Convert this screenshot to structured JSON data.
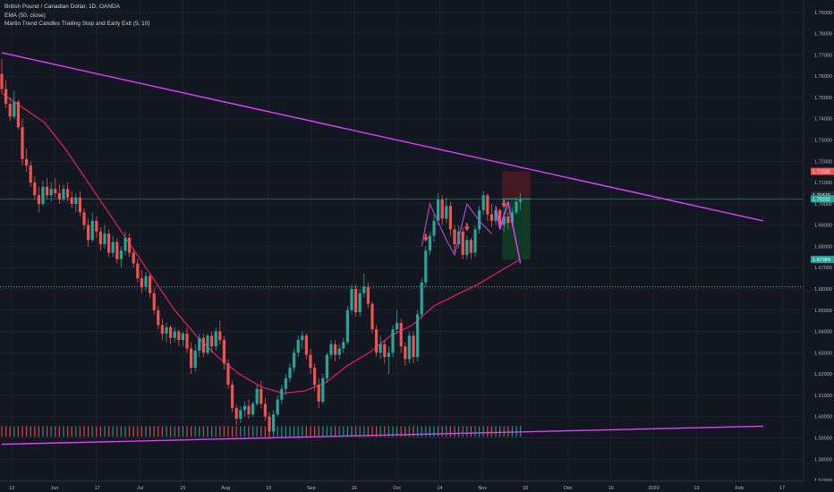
{
  "header": {
    "symbol_line": "British Pound / Canadian Dollar, 1D, OANDA",
    "ema_line": "EMA (50, close)",
    "indicator_line": "Martin Trend Candles Trailing Stop and Early Exit (5, 10)"
  },
  "colors": {
    "background": "#131722",
    "up": "#26a69a",
    "down": "#ef5350",
    "ema": "#e91e63",
    "trendline": "#e040fb",
    "pattern_line": "#ab47bc",
    "level_line": "#4db6ac",
    "stop_zone": "#4a1a22",
    "target_zone": "#0f3d25",
    "arrow": "#ef5350"
  },
  "chart_data": {
    "type": "candlestick",
    "x_ticks": [
      "13",
      "Jun",
      "17",
      "Jul",
      "15",
      "Aug",
      "19",
      "Sep",
      "16",
      "Oct",
      "14",
      "Nov",
      "18",
      "Dec",
      "16",
      "2020",
      "13",
      "Feb",
      "17"
    ],
    "y_ticks": [
      "1.79000",
      "1.78000",
      "1.77000",
      "1.76000",
      "1.75000",
      "1.74000",
      "1.73000",
      "1.72000",
      "1.71000",
      "1.70000",
      "1.69000",
      "1.68000",
      "1.67000",
      "1.66000",
      "1.65000",
      "1.64000",
      "1.63000",
      "1.62000",
      "1.61000",
      "1.60000",
      "1.59000",
      "1.58000",
      "1.57000"
    ],
    "ylim": [
      1.5696,
      1.7958
    ],
    "price_labels": [
      {
        "value": 1.71525,
        "text": "1.71525",
        "color": "#ef5350"
      },
      {
        "value": 1.70415,
        "text": "1.70415",
        "color": "#2a2e39"
      },
      {
        "value": 1.70232,
        "text": "1.70232",
        "color": "#26a69a"
      },
      {
        "value": 1.67384,
        "text": "1.67384",
        "color": "#26a69a"
      }
    ],
    "candles": [
      {
        "o": 1.761,
        "h": 1.768,
        "l": 1.752,
        "c": 1.754
      },
      {
        "o": 1.754,
        "h": 1.758,
        "l": 1.745,
        "c": 1.747
      },
      {
        "o": 1.747,
        "h": 1.75,
        "l": 1.739,
        "c": 1.741
      },
      {
        "o": 1.741,
        "h": 1.753,
        "l": 1.74,
        "c": 1.748
      },
      {
        "o": 1.748,
        "h": 1.749,
        "l": 1.735,
        "c": 1.736
      },
      {
        "o": 1.736,
        "h": 1.74,
        "l": 1.718,
        "c": 1.721
      },
      {
        "o": 1.721,
        "h": 1.726,
        "l": 1.715,
        "c": 1.718
      },
      {
        "o": 1.718,
        "h": 1.72,
        "l": 1.708,
        "c": 1.71
      },
      {
        "o": 1.71,
        "h": 1.713,
        "l": 1.702,
        "c": 1.704
      },
      {
        "o": 1.704,
        "h": 1.708,
        "l": 1.696,
        "c": 1.7
      },
      {
        "o": 1.7,
        "h": 1.711,
        "l": 1.699,
        "c": 1.708
      },
      {
        "o": 1.708,
        "h": 1.712,
        "l": 1.702,
        "c": 1.704
      },
      {
        "o": 1.704,
        "h": 1.71,
        "l": 1.701,
        "c": 1.707
      },
      {
        "o": 1.707,
        "h": 1.712,
        "l": 1.703,
        "c": 1.705
      },
      {
        "o": 1.705,
        "h": 1.709,
        "l": 1.7,
        "c": 1.702
      },
      {
        "o": 1.702,
        "h": 1.709,
        "l": 1.701,
        "c": 1.707
      },
      {
        "o": 1.707,
        "h": 1.71,
        "l": 1.701,
        "c": 1.703
      },
      {
        "o": 1.703,
        "h": 1.706,
        "l": 1.698,
        "c": 1.7
      },
      {
        "o": 1.7,
        "h": 1.705,
        "l": 1.696,
        "c": 1.703
      },
      {
        "o": 1.703,
        "h": 1.706,
        "l": 1.694,
        "c": 1.696
      },
      {
        "o": 1.696,
        "h": 1.698,
        "l": 1.688,
        "c": 1.69
      },
      {
        "o": 1.69,
        "h": 1.693,
        "l": 1.68,
        "c": 1.683
      },
      {
        "o": 1.683,
        "h": 1.696,
        "l": 1.682,
        "c": 1.692
      },
      {
        "o": 1.692,
        "h": 1.694,
        "l": 1.684,
        "c": 1.687
      },
      {
        "o": 1.687,
        "h": 1.689,
        "l": 1.678,
        "c": 1.681
      },
      {
        "o": 1.681,
        "h": 1.69,
        "l": 1.679,
        "c": 1.686
      },
      {
        "o": 1.686,
        "h": 1.688,
        "l": 1.675,
        "c": 1.677
      },
      {
        "o": 1.677,
        "h": 1.685,
        "l": 1.675,
        "c": 1.682
      },
      {
        "o": 1.682,
        "h": 1.684,
        "l": 1.672,
        "c": 1.674
      },
      {
        "o": 1.674,
        "h": 1.68,
        "l": 1.67,
        "c": 1.678
      },
      {
        "o": 1.678,
        "h": 1.687,
        "l": 1.676,
        "c": 1.684
      },
      {
        "o": 1.684,
        "h": 1.686,
        "l": 1.675,
        "c": 1.677
      },
      {
        "o": 1.677,
        "h": 1.679,
        "l": 1.67,
        "c": 1.672
      },
      {
        "o": 1.672,
        "h": 1.674,
        "l": 1.663,
        "c": 1.665
      },
      {
        "o": 1.665,
        "h": 1.669,
        "l": 1.658,
        "c": 1.661
      },
      {
        "o": 1.661,
        "h": 1.668,
        "l": 1.659,
        "c": 1.666
      },
      {
        "o": 1.666,
        "h": 1.667,
        "l": 1.656,
        "c": 1.658
      },
      {
        "o": 1.658,
        "h": 1.66,
        "l": 1.648,
        "c": 1.65
      },
      {
        "o": 1.65,
        "h": 1.652,
        "l": 1.641,
        "c": 1.643
      },
      {
        "o": 1.643,
        "h": 1.646,
        "l": 1.636,
        "c": 1.639
      },
      {
        "o": 1.639,
        "h": 1.644,
        "l": 1.635,
        "c": 1.642
      },
      {
        "o": 1.642,
        "h": 1.643,
        "l": 1.634,
        "c": 1.637
      },
      {
        "o": 1.637,
        "h": 1.642,
        "l": 1.635,
        "c": 1.64
      },
      {
        "o": 1.64,
        "h": 1.641,
        "l": 1.633,
        "c": 1.636
      },
      {
        "o": 1.636,
        "h": 1.64,
        "l": 1.633,
        "c": 1.639
      },
      {
        "o": 1.639,
        "h": 1.642,
        "l": 1.63,
        "c": 1.632
      },
      {
        "o": 1.632,
        "h": 1.635,
        "l": 1.62,
        "c": 1.623
      },
      {
        "o": 1.623,
        "h": 1.634,
        "l": 1.621,
        "c": 1.631
      },
      {
        "o": 1.631,
        "h": 1.639,
        "l": 1.628,
        "c": 1.637
      },
      {
        "o": 1.637,
        "h": 1.639,
        "l": 1.628,
        "c": 1.63
      },
      {
        "o": 1.63,
        "h": 1.639,
        "l": 1.629,
        "c": 1.638
      },
      {
        "o": 1.638,
        "h": 1.64,
        "l": 1.63,
        "c": 1.633
      },
      {
        "o": 1.633,
        "h": 1.642,
        "l": 1.631,
        "c": 1.64
      },
      {
        "o": 1.64,
        "h": 1.645,
        "l": 1.634,
        "c": 1.636
      },
      {
        "o": 1.636,
        "h": 1.638,
        "l": 1.622,
        "c": 1.625
      },
      {
        "o": 1.625,
        "h": 1.627,
        "l": 1.613,
        "c": 1.615
      },
      {
        "o": 1.615,
        "h": 1.617,
        "l": 1.602,
        "c": 1.604
      },
      {
        "o": 1.604,
        "h": 1.606,
        "l": 1.596,
        "c": 1.599
      },
      {
        "o": 1.599,
        "h": 1.605,
        "l": 1.597,
        "c": 1.603
      },
      {
        "o": 1.603,
        "h": 1.607,
        "l": 1.6,
        "c": 1.605
      },
      {
        "o": 1.605,
        "h": 1.608,
        "l": 1.599,
        "c": 1.601
      },
      {
        "o": 1.601,
        "h": 1.607,
        "l": 1.6,
        "c": 1.606
      },
      {
        "o": 1.606,
        "h": 1.615,
        "l": 1.605,
        "c": 1.613
      },
      {
        "o": 1.613,
        "h": 1.617,
        "l": 1.604,
        "c": 1.606
      },
      {
        "o": 1.606,
        "h": 1.609,
        "l": 1.598,
        "c": 1.6
      },
      {
        "o": 1.6,
        "h": 1.602,
        "l": 1.59,
        "c": 1.593
      },
      {
        "o": 1.593,
        "h": 1.603,
        "l": 1.592,
        "c": 1.601
      },
      {
        "o": 1.601,
        "h": 1.61,
        "l": 1.6,
        "c": 1.608
      },
      {
        "o": 1.608,
        "h": 1.615,
        "l": 1.606,
        "c": 1.613
      },
      {
        "o": 1.613,
        "h": 1.62,
        "l": 1.61,
        "c": 1.618
      },
      {
        "o": 1.618,
        "h": 1.625,
        "l": 1.616,
        "c": 1.623
      },
      {
        "o": 1.623,
        "h": 1.632,
        "l": 1.621,
        "c": 1.63
      },
      {
        "o": 1.63,
        "h": 1.638,
        "l": 1.628,
        "c": 1.636
      },
      {
        "o": 1.636,
        "h": 1.64,
        "l": 1.632,
        "c": 1.638
      },
      {
        "o": 1.638,
        "h": 1.639,
        "l": 1.627,
        "c": 1.629
      },
      {
        "o": 1.629,
        "h": 1.632,
        "l": 1.62,
        "c": 1.623
      },
      {
        "o": 1.623,
        "h": 1.625,
        "l": 1.612,
        "c": 1.615
      },
      {
        "o": 1.615,
        "h": 1.618,
        "l": 1.604,
        "c": 1.607
      },
      {
        "o": 1.607,
        "h": 1.62,
        "l": 1.606,
        "c": 1.618
      },
      {
        "o": 1.618,
        "h": 1.63,
        "l": 1.616,
        "c": 1.629
      },
      {
        "o": 1.629,
        "h": 1.636,
        "l": 1.627,
        "c": 1.634
      },
      {
        "o": 1.634,
        "h": 1.636,
        "l": 1.626,
        "c": 1.629
      },
      {
        "o": 1.629,
        "h": 1.634,
        "l": 1.627,
        "c": 1.632
      },
      {
        "o": 1.632,
        "h": 1.637,
        "l": 1.63,
        "c": 1.635
      },
      {
        "o": 1.635,
        "h": 1.652,
        "l": 1.634,
        "c": 1.65
      },
      {
        "o": 1.65,
        "h": 1.662,
        "l": 1.648,
        "c": 1.66
      },
      {
        "o": 1.66,
        "h": 1.662,
        "l": 1.647,
        "c": 1.649
      },
      {
        "o": 1.649,
        "h": 1.66,
        "l": 1.647,
        "c": 1.658
      },
      {
        "o": 1.658,
        "h": 1.667,
        "l": 1.656,
        "c": 1.661
      },
      {
        "o": 1.661,
        "h": 1.663,
        "l": 1.651,
        "c": 1.653
      },
      {
        "o": 1.653,
        "h": 1.654,
        "l": 1.639,
        "c": 1.641
      },
      {
        "o": 1.641,
        "h": 1.643,
        "l": 1.628,
        "c": 1.63
      },
      {
        "o": 1.63,
        "h": 1.638,
        "l": 1.627,
        "c": 1.634
      },
      {
        "o": 1.634,
        "h": 1.636,
        "l": 1.625,
        "c": 1.628
      },
      {
        "o": 1.628,
        "h": 1.633,
        "l": 1.62,
        "c": 1.63
      },
      {
        "o": 1.63,
        "h": 1.643,
        "l": 1.628,
        "c": 1.641
      },
      {
        "o": 1.641,
        "h": 1.65,
        "l": 1.639,
        "c": 1.644
      },
      {
        "o": 1.644,
        "h": 1.646,
        "l": 1.63,
        "c": 1.633
      },
      {
        "o": 1.633,
        "h": 1.635,
        "l": 1.624,
        "c": 1.627
      },
      {
        "o": 1.627,
        "h": 1.64,
        "l": 1.625,
        "c": 1.638
      },
      {
        "o": 1.638,
        "h": 1.64,
        "l": 1.625,
        "c": 1.628
      },
      {
        "o": 1.628,
        "h": 1.65,
        "l": 1.626,
        "c": 1.648
      },
      {
        "o": 1.648,
        "h": 1.665,
        "l": 1.646,
        "c": 1.663
      },
      {
        "o": 1.663,
        "h": 1.68,
        "l": 1.661,
        "c": 1.678
      },
      {
        "o": 1.678,
        "h": 1.687,
        "l": 1.676,
        "c": 1.685
      },
      {
        "o": 1.685,
        "h": 1.695,
        "l": 1.682,
        "c": 1.692
      },
      {
        "o": 1.692,
        "h": 1.705,
        "l": 1.69,
        "c": 1.702
      },
      {
        "o": 1.702,
        "h": 1.704,
        "l": 1.69,
        "c": 1.693
      },
      {
        "o": 1.693,
        "h": 1.703,
        "l": 1.691,
        "c": 1.699
      },
      {
        "o": 1.699,
        "h": 1.701,
        "l": 1.685,
        "c": 1.688
      },
      {
        "o": 1.688,
        "h": 1.69,
        "l": 1.677,
        "c": 1.681
      },
      {
        "o": 1.681,
        "h": 1.69,
        "l": 1.679,
        "c": 1.687
      },
      {
        "o": 1.687,
        "h": 1.689,
        "l": 1.674,
        "c": 1.676
      },
      {
        "o": 1.676,
        "h": 1.685,
        "l": 1.674,
        "c": 1.683
      },
      {
        "o": 1.683,
        "h": 1.684,
        "l": 1.674,
        "c": 1.677
      },
      {
        "o": 1.677,
        "h": 1.69,
        "l": 1.675,
        "c": 1.688
      },
      {
        "o": 1.688,
        "h": 1.699,
        "l": 1.686,
        "c": 1.697
      },
      {
        "o": 1.697,
        "h": 1.706,
        "l": 1.695,
        "c": 1.704
      },
      {
        "o": 1.704,
        "h": 1.705,
        "l": 1.692,
        "c": 1.695
      },
      {
        "o": 1.695,
        "h": 1.7,
        "l": 1.689,
        "c": 1.692
      },
      {
        "o": 1.692,
        "h": 1.699,
        "l": 1.69,
        "c": 1.697
      },
      {
        "o": 1.697,
        "h": 1.698,
        "l": 1.688,
        "c": 1.69
      },
      {
        "o": 1.69,
        "h": 1.696,
        "l": 1.687,
        "c": 1.694
      },
      {
        "o": 1.694,
        "h": 1.696,
        "l": 1.688,
        "c": 1.691
      },
      {
        "o": 1.691,
        "h": 1.698,
        "l": 1.689,
        "c": 1.696
      },
      {
        "o": 1.696,
        "h": 1.703,
        "l": 1.695,
        "c": 1.701
      },
      {
        "o": 1.701,
        "h": 1.705,
        "l": 1.697,
        "c": 1.702
      }
    ],
    "ema": [
      1.752,
      1.745,
      1.738,
      1.725,
      1.71,
      1.695,
      1.68,
      1.665,
      1.65,
      1.638,
      1.628,
      1.62,
      1.614,
      1.611,
      1.612,
      1.616,
      1.624,
      1.63,
      1.638,
      1.643,
      1.652,
      1.657,
      1.662,
      1.668,
      1.674
    ],
    "trendlines": [
      {
        "name": "descending-resistance",
        "from": [
          0,
          1.771
        ],
        "to": [
          185,
          1.692
        ]
      },
      {
        "name": "ascending-support",
        "from": [
          0,
          1.587
        ],
        "to": [
          185,
          1.5955
        ]
      }
    ],
    "arrow_candles": [
      103,
      113,
      122
    ],
    "position": {
      "entry": 1.70232,
      "stop": 1.71525,
      "target": 1.67384,
      "from_index": 122,
      "to_index": 128
    },
    "projection": [
      [
        120,
        1.699
      ],
      [
        121,
        1.688
      ],
      [
        123,
        1.701
      ],
      [
        126,
        1.672
      ]
    ],
    "pattern_zigzag": [
      [
        102,
        1.68
      ],
      [
        104,
        1.7
      ],
      [
        108,
        1.683
      ],
      [
        110,
        1.676
      ],
      [
        113,
        1.7
      ],
      [
        116,
        1.692
      ],
      [
        119,
        1.686
      ]
    ],
    "level_line": 1.661
  }
}
